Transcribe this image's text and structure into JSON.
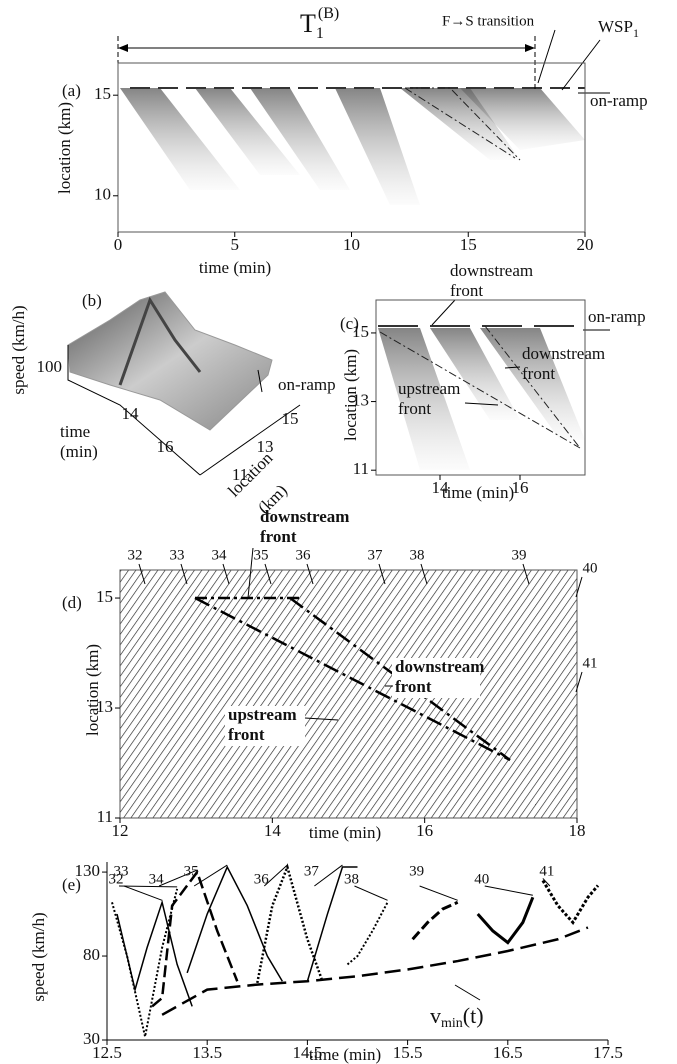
{
  "chart_data": [
    {
      "type": "heatmap",
      "panel": "(a)",
      "xlabel": "time (min)",
      "ylabel": "location (km)",
      "xlim": [
        0,
        20
      ],
      "ylim": [
        8.2,
        16.6
      ],
      "xticks": [
        0,
        5,
        10,
        15,
        20
      ],
      "yticks": [
        10,
        15
      ],
      "period": {
        "text": "T",
        "sub": "1",
        "sup": "(B)"
      },
      "transition": "F→S transition",
      "wsp": {
        "text": "WSP",
        "sub": "1"
      },
      "ramp": "on-ramp"
    },
    {
      "type": "surface",
      "panel": "(b)",
      "zlabel": "speed (km/h)",
      "xlabel": [
        "time",
        "(min)"
      ],
      "ylabel": [
        "location",
        "(km)"
      ],
      "zticks": [
        100
      ],
      "xticks": [
        14,
        16
      ],
      "yticks": [
        11,
        13,
        15
      ],
      "ramp": "on-ramp"
    },
    {
      "type": "heatmap",
      "panel": "(c)",
      "xlabel": "time (min)",
      "ylabel": "location (km)",
      "xlim": [
        12.4,
        17.625
      ],
      "ylim": [
        10.86,
        15.96
      ],
      "xticks": [
        14,
        16
      ],
      "yticks": [
        11,
        13,
        15
      ],
      "ramp": "on-ramp",
      "top_front": [
        "downstream",
        "front"
      ],
      "right_front": [
        "downstream",
        "front"
      ],
      "up_front": [
        "upstream",
        "front"
      ]
    },
    {
      "type": "trajectories",
      "panel": "(d)",
      "xlabel": "time (min)",
      "ylabel": "location (km)",
      "xlim": [
        12,
        18
      ],
      "ylim": [
        11,
        15.51
      ],
      "xticks": [
        12,
        14,
        16,
        18
      ],
      "yticks": [
        11,
        13,
        15
      ],
      "vehicles": [
        32,
        33,
        34,
        35,
        36,
        37,
        38,
        39,
        40,
        41
      ],
      "top_front": [
        "downstream",
        "front"
      ],
      "right_front": [
        "downstream",
        "front"
      ],
      "up_front": [
        "upstream",
        "front"
      ]
    },
    {
      "type": "line",
      "panel": "(e)",
      "xlabel": "time (min)",
      "ylabel": "speed (km/h)",
      "xlim": [
        12.5,
        17.5
      ],
      "ylim": [
        30,
        136
      ],
      "xticks": [
        12.5,
        13.5,
        14.5,
        15.5,
        16.5,
        17.5
      ],
      "yticks": [
        30,
        80,
        130
      ],
      "series": [
        {
          "name": "32",
          "x": [
            12.55,
            12.7,
            12.88,
            13.05,
            13.2
          ],
          "values": [
            112,
            80,
            32,
            85,
            120
          ]
        },
        {
          "name": "33",
          "x": [
            12.6,
            12.78,
            12.9,
            13.05,
            13.2,
            13.35
          ],
          "values": [
            105,
            60,
            85,
            112,
            75,
            50
          ]
        },
        {
          "name": "34",
          "x": [
            12.95,
            13.05,
            13.15,
            13.4,
            13.6,
            13.8
          ],
          "values": [
            50,
            55,
            110,
            130,
            95,
            65
          ]
        },
        {
          "name": "35",
          "x": [
            13.3,
            13.5,
            13.7,
            13.9,
            14.1,
            14.25
          ],
          "values": [
            70,
            105,
            133,
            110,
            80,
            65
          ]
        },
        {
          "name": "36",
          "x": [
            14.0,
            14.15,
            14.3,
            14.5,
            14.65
          ],
          "values": [
            64,
            110,
            133,
            90,
            65
          ]
        },
        {
          "name": "37",
          "x": [
            14.5,
            14.7,
            14.85,
            15.0
          ],
          "values": [
            65,
            105,
            133,
            133
          ]
        },
        {
          "name": "38",
          "x": [
            14.9,
            15.0,
            15.15,
            15.3
          ],
          "values": [
            75,
            80,
            95,
            112
          ]
        },
        {
          "name": "39",
          "x": [
            15.55,
            15.7,
            15.85,
            16.0
          ],
          "values": [
            90,
            100,
            108,
            112
          ]
        },
        {
          "name": "40",
          "x": [
            16.2,
            16.35,
            16.5,
            16.65,
            16.75
          ],
          "values": [
            105,
            95,
            88,
            100,
            115
          ]
        },
        {
          "name": "41",
          "x": [
            16.85,
            17.0,
            17.15,
            17.3,
            17.4
          ],
          "values": [
            125,
            110,
            100,
            115,
            122
          ]
        },
        {
          "x": [
            13.05,
            13.5,
            14.0,
            14.5,
            15.0,
            15.5,
            16.0,
            16.5,
            17.0,
            17.3
          ],
          "values": [
            45,
            60,
            63,
            65,
            68,
            72,
            77,
            83,
            90,
            97
          ]
        }
      ],
      "vmin": {
        "text": "v",
        "sub": "min",
        "tail": "(t)"
      }
    }
  ]
}
